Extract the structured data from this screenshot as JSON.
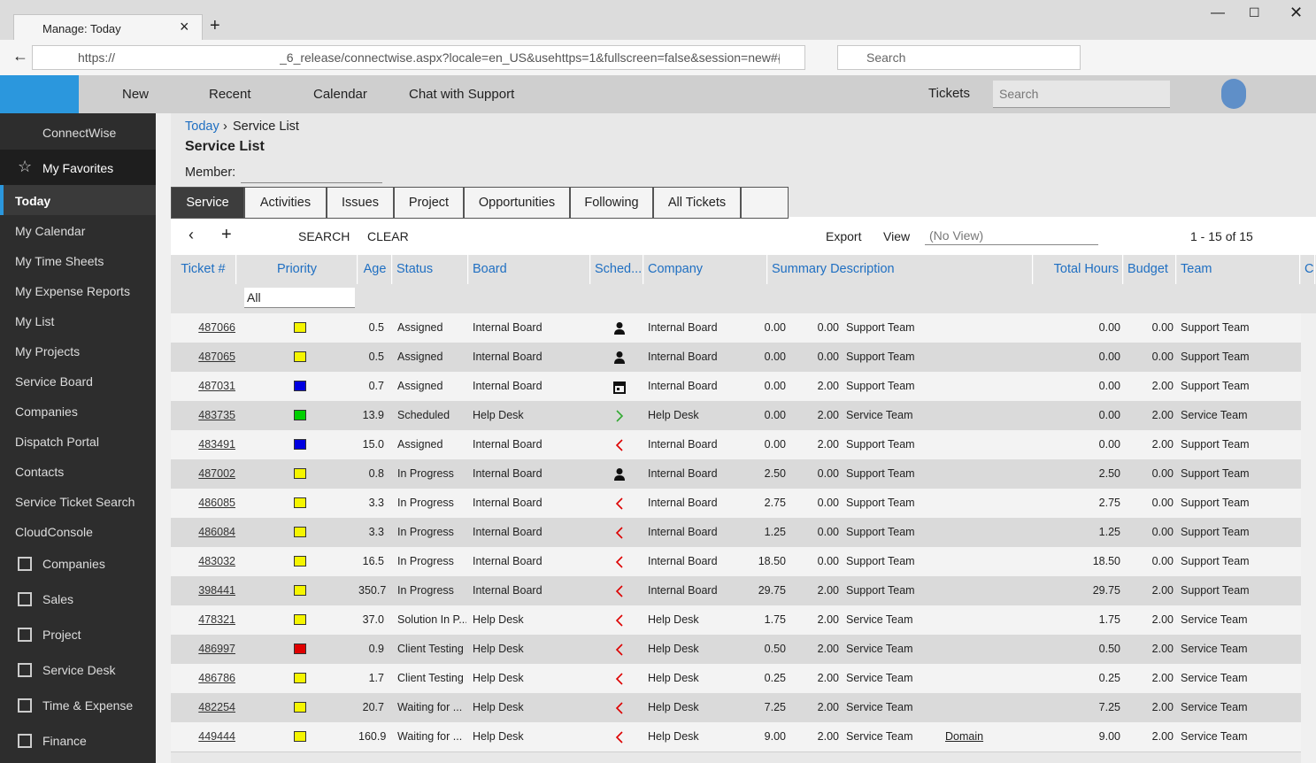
{
  "browser": {
    "tab_title": "Manage: Today",
    "url_scheme": "https://",
    "url_path": "_6_release/connectwise.aspx?locale=en_US&usehttps=1&fullscreen=false&session=new#{\"pi",
    "search_placeholder": "Search"
  },
  "app_bar": {
    "menu": [
      "New",
      "Recent",
      "Calendar",
      "Chat with Support"
    ],
    "tickets": "Tickets",
    "search_placeholder": "Search"
  },
  "sidebar": {
    "brand": "ConnectWise",
    "favorites": "My Favorites",
    "items": [
      "Today",
      "My Calendar",
      "My Time Sheets",
      "My Expense Reports",
      "My List",
      "My Projects",
      "Service Board",
      "Companies",
      "Dispatch Portal",
      "Contacts",
      "Service Ticket Search",
      "CloudConsole"
    ],
    "sections": [
      "Companies",
      "Sales",
      "Project",
      "Service Desk",
      "Time & Expense",
      "Finance"
    ]
  },
  "header": {
    "breadcrumb": [
      "Today",
      "Service List"
    ],
    "title": "Service List",
    "member_label": "Member:"
  },
  "tabs": [
    "Service",
    "Activities",
    "Issues",
    "Project",
    "Opportunities",
    "Following",
    "All Tickets"
  ],
  "toolbar": {
    "search": "SEARCH",
    "clear": "CLEAR",
    "export": "Export",
    "view": "View",
    "view_value": "(No View)",
    "paging": "1 - 15 of 15"
  },
  "table": {
    "columns": [
      "Ticket #",
      "Priority",
      "Age",
      "Status",
      "Board",
      "Sched...",
      "Company",
      "Summary Description",
      "Total Hours",
      "Budget",
      "Team",
      "Co"
    ],
    "filter_all": "All",
    "rows": [
      {
        "ticket": "487066",
        "priority": "#f5f500",
        "age": "0.5",
        "status": "Assigned",
        "board": "Internal Board",
        "sched": "person",
        "company": "Internal Board",
        "hours": "0.00",
        "budget": "0.00",
        "team": "Support Team",
        "total": "0.00",
        "budget2": "0.00",
        "team2": "Support Team"
      },
      {
        "ticket": "487065",
        "priority": "#f5f500",
        "age": "0.5",
        "status": "Assigned",
        "board": "Internal Board",
        "sched": "person",
        "company": "Internal Board",
        "hours": "0.00",
        "budget": "0.00",
        "team": "Support Team",
        "total": "0.00",
        "budget2": "0.00",
        "team2": "Support Team"
      },
      {
        "ticket": "487031",
        "priority": "#0000e0",
        "age": "0.7",
        "status": "Assigned",
        "board": "Internal Board",
        "sched": "calendar",
        "company": "Internal Board",
        "hours": "0.00",
        "budget": "2.00",
        "team": "Support Team",
        "total": "0.00",
        "budget2": "2.00",
        "team2": "Support Team"
      },
      {
        "ticket": "483735",
        "priority": "#00d000",
        "age": "13.9",
        "status": "Scheduled",
        "board": "Help Desk",
        "sched": "right",
        "company": "Help Desk",
        "hours": "0.00",
        "budget": "2.00",
        "team": "Service Team",
        "total": "0.00",
        "budget2": "2.00",
        "team2": "Service Team"
      },
      {
        "ticket": "483491",
        "priority": "#0000e0",
        "age": "15.0",
        "status": "Assigned",
        "board": "Internal Board",
        "sched": "left",
        "company": "Internal Board",
        "hours": "0.00",
        "budget": "2.00",
        "team": "Support Team",
        "total": "0.00",
        "budget2": "2.00",
        "team2": "Support Team"
      },
      {
        "ticket": "487002",
        "priority": "#f5f500",
        "age": "0.8",
        "status": "In Progress",
        "board": "Internal Board",
        "sched": "person",
        "company": "Internal Board",
        "hours": "2.50",
        "budget": "0.00",
        "team": "Support Team",
        "total": "2.50",
        "budget2": "0.00",
        "team2": "Support Team"
      },
      {
        "ticket": "486085",
        "priority": "#f5f500",
        "age": "3.3",
        "status": "In Progress",
        "board": "Internal Board",
        "sched": "left",
        "company": "Internal Board",
        "hours": "2.75",
        "budget": "0.00",
        "team": "Support Team",
        "total": "2.75",
        "budget2": "0.00",
        "team2": "Support Team"
      },
      {
        "ticket": "486084",
        "priority": "#f5f500",
        "age": "3.3",
        "status": "In Progress",
        "board": "Internal Board",
        "sched": "left",
        "company": "Internal Board",
        "hours": "1.25",
        "budget": "0.00",
        "team": "Support Team",
        "total": "1.25",
        "budget2": "0.00",
        "team2": "Support Team"
      },
      {
        "ticket": "483032",
        "priority": "#f5f500",
        "age": "16.5",
        "status": "In Progress",
        "board": "Internal Board",
        "sched": "left",
        "company": "Internal Board",
        "hours": "18.50",
        "budget": "0.00",
        "team": "Support Team",
        "total": "18.50",
        "budget2": "0.00",
        "team2": "Support Team"
      },
      {
        "ticket": "398441",
        "priority": "#f5f500",
        "age": "350.7",
        "status": "In Progress",
        "board": "Internal Board",
        "sched": "left",
        "company": "Internal Board",
        "hours": "29.75",
        "budget": "2.00",
        "team": "Support Team",
        "total": "29.75",
        "budget2": "2.00",
        "team2": "Support Team"
      },
      {
        "ticket": "478321",
        "priority": "#f5f500",
        "age": "37.0",
        "status": "Solution In P...",
        "board": "Help Desk",
        "sched": "left",
        "company": "Help Desk",
        "hours": "1.75",
        "budget": "2.00",
        "team": "Service Team",
        "total": "1.75",
        "budget2": "2.00",
        "team2": "Service Team"
      },
      {
        "ticket": "486997",
        "priority": "#e00000",
        "age": "0.9",
        "status": "Client Testing",
        "board": "Help Desk",
        "sched": "left",
        "company": "Help Desk",
        "hours": "0.50",
        "budget": "2.00",
        "team": "Service Team",
        "total": "0.50",
        "budget2": "2.00",
        "team2": "Service Team"
      },
      {
        "ticket": "486786",
        "priority": "#f5f500",
        "age": "1.7",
        "status": "Client Testing",
        "board": "Help Desk",
        "sched": "left",
        "company": "Help Desk",
        "hours": "0.25",
        "budget": "2.00",
        "team": "Service Team",
        "total": "0.25",
        "budget2": "2.00",
        "team2": "Service Team"
      },
      {
        "ticket": "482254",
        "priority": "#f5f500",
        "age": "20.7",
        "status": "Waiting for ...",
        "board": "Help Desk",
        "sched": "left",
        "company": "Help Desk",
        "hours": "7.25",
        "budget": "2.00",
        "team": "Service Team",
        "total": "7.25",
        "budget2": "2.00",
        "team2": "Service Team"
      },
      {
        "ticket": "449444",
        "priority": "#f5f500",
        "age": "160.9",
        "status": "Waiting for ...",
        "board": "Help Desk",
        "sched": "left",
        "company": "Help Desk",
        "hours": "9.00",
        "budget": "2.00",
        "team": "Service Team",
        "note": "Domain",
        "total": "9.00",
        "budget2": "2.00",
        "team2": "Service Team"
      }
    ]
  }
}
